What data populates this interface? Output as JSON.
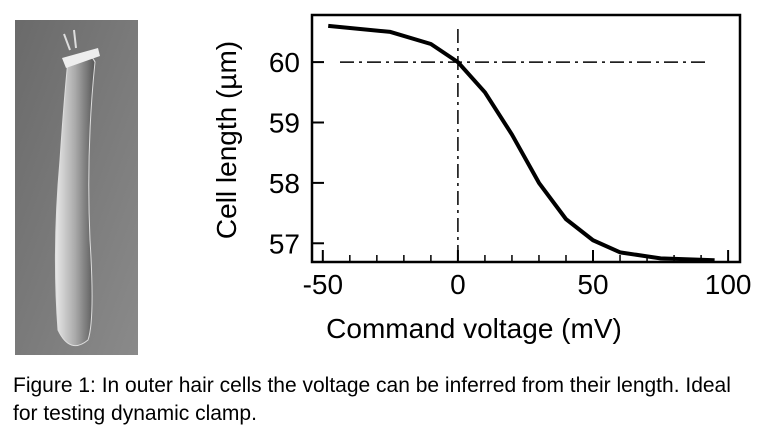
{
  "chart_data": {
    "type": "line",
    "x_label": "Command voltage (mV)",
    "y_label": "Cell length (µm)",
    "x": [
      -48,
      -25,
      -10,
      0,
      10,
      20,
      30,
      40,
      50,
      60,
      75,
      95
    ],
    "series": [
      {
        "color": "#000000",
        "values": [
          60.6,
          60.5,
          60.3,
          60.0,
          59.5,
          58.8,
          58.0,
          57.4,
          57.05,
          56.85,
          56.75,
          56.72
        ]
      }
    ],
    "xlim": [
      -54,
      104.4
    ],
    "ylim": [
      56.69,
      60.78
    ],
    "xticks": [
      -50,
      0,
      50,
      100
    ],
    "xminorticks": [
      -40,
      -30,
      -20,
      -10,
      10,
      20,
      30,
      40,
      60,
      70,
      80,
      90
    ],
    "yticks": [
      57,
      58,
      59,
      60
    ],
    "hline": 60,
    "vline": 0
  },
  "caption": "Figure 1: In outer hair cells the voltage can be inferred from their length. Ideal for testing dynamic clamp."
}
